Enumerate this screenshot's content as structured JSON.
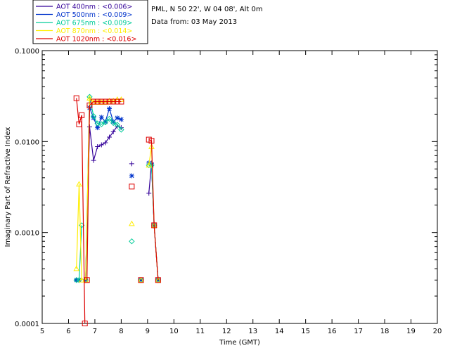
{
  "header": {
    "site": "PML, N 50 22', W 04 08', Alt 0m",
    "date": "Data from: 03 May 2013"
  },
  "chart_data": {
    "type": "line",
    "xlabel": "Time (GMT)",
    "ylabel": "Imaginary Part of Refractive Index",
    "xlim": [
      5,
      20
    ],
    "ylim": [
      0.0001,
      0.1
    ],
    "yscale": "log",
    "grid": false,
    "legend_position": "top-left",
    "x_ticks": [
      "5",
      "6",
      "7",
      "8",
      "9",
      "10",
      "11",
      "12",
      "13",
      "14",
      "15",
      "16",
      "17",
      "18",
      "19",
      "20"
    ],
    "y_ticks": [
      {
        "value": 0.0001,
        "label": "0.0001"
      },
      {
        "value": 0.001,
        "label": "0.0010"
      },
      {
        "value": 0.01,
        "label": "0.0100"
      },
      {
        "value": 0.1,
        "label": "0.1000"
      }
    ],
    "series": [
      {
        "name": "AOT  400nm : <0.006>",
        "color": "#330099",
        "marker": "plus",
        "segments": [
          {
            "x": [
              6.3,
              6.4
            ],
            "y": [
              0.0003,
              0.0003
            ]
          },
          {
            "x": [
              6.65,
              6.8,
              6.95,
              7.1,
              7.25,
              7.4,
              7.55,
              7.7,
              7.85,
              8.0
            ],
            "y": [
              0.0003,
              0.0145,
              0.0062,
              0.0088,
              0.0092,
              0.0097,
              0.0112,
              0.0128,
              0.0148,
              0.0142
            ]
          },
          {
            "x": [
              8.4
            ],
            "y": [
              0.0057
            ]
          },
          {
            "x": [
              8.75
            ],
            "y": [
              0.0003
            ]
          },
          {
            "x": [
              9.05,
              9.15,
              9.25,
              9.4
            ],
            "y": [
              0.0027,
              0.0058,
              0.0012,
              0.0003
            ]
          }
        ]
      },
      {
        "name": "AOT  500nm : <0.009>",
        "color": "#0033cc",
        "marker": "asterisk",
        "segments": [
          {
            "x": [
              6.3,
              6.4
            ],
            "y": [
              0.0003,
              0.0003
            ]
          },
          {
            "x": [
              6.65,
              6.8,
              6.95,
              7.1,
              7.25,
              7.4,
              7.55,
              7.7,
              7.85,
              8.0
            ],
            "y": [
              0.0003,
              0.0235,
              0.0182,
              0.0142,
              0.0185,
              0.0165,
              0.023,
              0.0165,
              0.0182,
              0.0175
            ]
          },
          {
            "x": [
              8.4
            ],
            "y": [
              0.0042
            ]
          },
          {
            "x": [
              8.75
            ],
            "y": [
              0.0003
            ]
          },
          {
            "x": [
              9.05,
              9.15,
              9.25,
              9.4
            ],
            "y": [
              0.0058,
              0.0055,
              0.0012,
              0.0003
            ]
          }
        ]
      },
      {
        "name": "AOT  675nm : <0.009>",
        "color": "#00cc99",
        "marker": "diamond",
        "segments": [
          {
            "x": [
              6.3,
              6.4,
              6.5
            ],
            "y": [
              0.0003,
              0.0003,
              0.0012
            ]
          },
          {
            "x": [
              6.65,
              6.8,
              6.95,
              7.1,
              7.25,
              7.4,
              7.55,
              7.7,
              7.85,
              8.0
            ],
            "y": [
              0.0003,
              0.031,
              0.019,
              0.0158,
              0.0155,
              0.0163,
              0.0178,
              0.016,
              0.0153,
              0.0135
            ]
          },
          {
            "x": [
              8.4
            ],
            "y": [
              0.0008
            ]
          },
          {
            "x": [
              8.75
            ],
            "y": [
              0.0003
            ]
          },
          {
            "x": [
              9.05,
              9.15,
              9.25,
              9.4
            ],
            "y": [
              0.0055,
              0.0055,
              0.0012,
              0.0003
            ]
          }
        ]
      },
      {
        "name": "AOT  870nm : <0.014>",
        "color": "#ffee00",
        "marker": "triangle",
        "segments": [
          {
            "x": [
              6.3,
              6.4,
              6.5
            ],
            "y": [
              0.0004,
              0.0034,
              0.0003
            ]
          },
          {
            "x": [
              6.65,
              6.8,
              6.95,
              7.1,
              7.25,
              7.4,
              7.55,
              7.7,
              7.85,
              8.0
            ],
            "y": [
              0.0003,
              0.03,
              0.027,
              0.027,
              0.027,
              0.027,
              0.028,
              0.028,
              0.029,
              0.029
            ]
          },
          {
            "x": [
              8.4
            ],
            "y": [
              0.00125
            ]
          },
          {
            "x": [
              8.75
            ],
            "y": [
              0.0003
            ]
          },
          {
            "x": [
              9.05,
              9.15,
              9.25,
              9.4
            ],
            "y": [
              0.0055,
              0.0088,
              0.0012,
              0.0003
            ]
          }
        ]
      },
      {
        "name": "AOT 1020nm : <0.016>",
        "color": "#dd0000",
        "marker": "square",
        "segments": [
          {
            "x": [
              6.3,
              6.4,
              6.5,
              6.62
            ],
            "y": [
              0.03,
              0.0155,
              0.0195,
              0.0001
            ]
          },
          {
            "x": [
              6.7,
              6.8,
              6.95,
              7.1,
              7.25,
              7.4,
              7.55,
              7.7,
              7.85,
              8.0
            ],
            "y": [
              0.0003,
              0.025,
              0.0275,
              0.0275,
              0.0275,
              0.0275,
              0.0275,
              0.0275,
              0.0275,
              0.0275
            ]
          },
          {
            "x": [
              8.4
            ],
            "y": [
              0.0032
            ]
          },
          {
            "x": [
              8.75
            ],
            "y": [
              0.0003
            ]
          },
          {
            "x": [
              9.05,
              9.15,
              9.25,
              9.4
            ],
            "y": [
              0.0105,
              0.0102,
              0.0012,
              0.0003
            ]
          }
        ]
      }
    ]
  }
}
